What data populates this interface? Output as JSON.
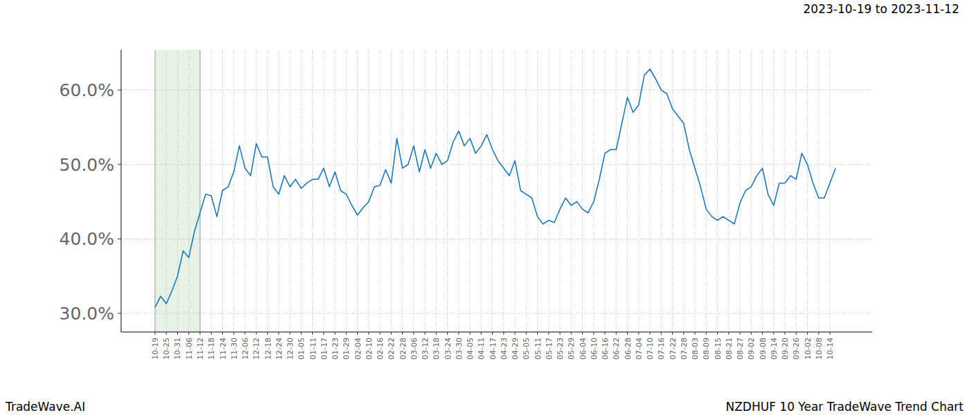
{
  "chart_data": {
    "type": "line",
    "title": "NZDHUF 10 Year TradeWave Trend Chart",
    "subtitle": "2023-10-19 to 2023-11-12",
    "source": "TradeWave.AI",
    "color": "#1f77b4",
    "grid": true,
    "highlight": {
      "start": "10-19",
      "end": "11-12"
    },
    "ylim": [
      27.5,
      65.4
    ],
    "yticks": [
      {
        "value": 30,
        "label": "30.0%"
      },
      {
        "value": 40,
        "label": "40.0%"
      },
      {
        "value": 50,
        "label": "50.0%"
      },
      {
        "value": 60,
        "label": "60.0%"
      }
    ],
    "categories": [
      "10-19",
      null,
      "10-25",
      null,
      "10-31",
      null,
      "11-06",
      null,
      "11-12",
      null,
      "11-18",
      null,
      "11-24",
      null,
      "11-30",
      null,
      "12-06",
      null,
      "12-12",
      null,
      "12-18",
      null,
      "12-24",
      null,
      "12-30",
      null,
      "01-05",
      null,
      "01-11",
      null,
      "01-17",
      null,
      "01-23",
      null,
      "01-29",
      null,
      "02-04",
      null,
      "02-10",
      null,
      "02-16",
      null,
      "02-22",
      null,
      "02-28",
      null,
      "03-06",
      null,
      "03-12",
      null,
      "03-18",
      null,
      "03-24",
      null,
      "03-30",
      null,
      "04-05",
      null,
      "04-11",
      null,
      "04-17",
      null,
      "04-23",
      null,
      "04-29",
      null,
      "05-05",
      null,
      "05-11",
      null,
      "05-17",
      null,
      "05-23",
      null,
      "05-29",
      null,
      "06-04",
      null,
      "06-10",
      null,
      "06-16",
      null,
      "06-22",
      null,
      "06-28",
      null,
      "07-04",
      null,
      "07-10",
      null,
      "07-16",
      null,
      "07-22",
      null,
      "07-28",
      null,
      "08-03",
      null,
      "08-09",
      null,
      "08-15",
      null,
      "08-21",
      null,
      "08-27",
      null,
      "09-02",
      null,
      "09-08",
      null,
      "09-14",
      null,
      "09-20",
      null,
      "09-26",
      null,
      "10-02",
      null,
      "10-08",
      null,
      "10-14",
      null
    ],
    "values": [
      30.8,
      32.3,
      31.3,
      33.0,
      35.0,
      38.4,
      37.5,
      41.0,
      43.5,
      46.0,
      45.8,
      43.0,
      46.5,
      47.0,
      49.0,
      52.5,
      49.5,
      48.5,
      52.8,
      51.0,
      51.0,
      47.0,
      46.0,
      48.5,
      47.0,
      48.0,
      46.8,
      47.5,
      48.0,
      48.0,
      49.5,
      47.0,
      49.0,
      46.5,
      46.0,
      44.5,
      43.2,
      44.2,
      45.0,
      47.0,
      47.2,
      49.3,
      47.5,
      53.5,
      49.5,
      50.0,
      52.5,
      49.0,
      52.0,
      49.5,
      51.5,
      50.0,
      50.5,
      53.0,
      54.5,
      52.5,
      53.5,
      51.5,
      52.5,
      54.0,
      52.0,
      50.5,
      49.5,
      48.5,
      50.5,
      46.5,
      46.0,
      45.5,
      43.0,
      42.0,
      42.5,
      42.2,
      44.0,
      45.5,
      44.5,
      45.0,
      44.0,
      43.5,
      45.0,
      48.0,
      51.5,
      52.0,
      52.0,
      55.5,
      59.0,
      57.0,
      58.0,
      62.0,
      62.8,
      61.5,
      60.0,
      59.5,
      57.5,
      56.5,
      55.5,
      52.0,
      49.5,
      47.0,
      44.0,
      43.0,
      42.5,
      43.0,
      42.5,
      42.0,
      44.8,
      46.5,
      47.0,
      48.5,
      49.5,
      46.0,
      44.5,
      47.5,
      47.5,
      48.5,
      48.0,
      51.5,
      50.0,
      47.5,
      45.5,
      45.5,
      47.5,
      49.5
    ]
  }
}
